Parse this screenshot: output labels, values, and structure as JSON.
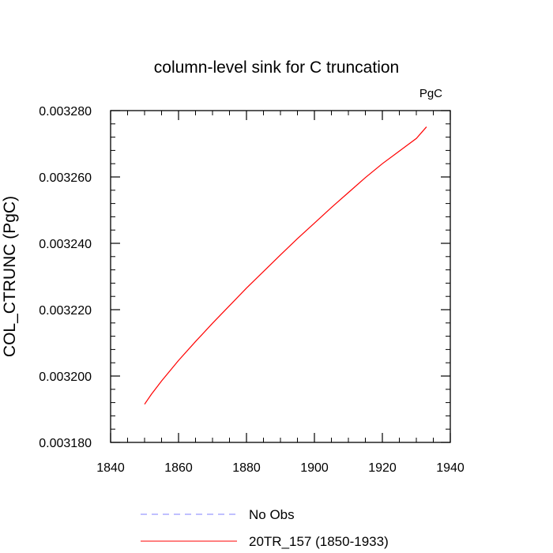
{
  "chart_data": {
    "type": "line",
    "title": "column-level sink for C truncation",
    "units_label": "PgC",
    "xlabel": "",
    "ylabel": "COL_CTRUNC  (PgC)",
    "xlim": [
      1840,
      1940
    ],
    "ylim": [
      0.00318,
      0.00328
    ],
    "x_ticks": [
      1840,
      1860,
      1880,
      1900,
      1920,
      1940
    ],
    "x_tick_labels": [
      "1840",
      "1860",
      "1880",
      "1900",
      "1920",
      "1940"
    ],
    "y_ticks": [
      0.00318,
      0.0032,
      0.00322,
      0.00324,
      0.00326,
      0.00328
    ],
    "y_tick_labels": [
      "0.003180",
      "0.003200",
      "0.003220",
      "0.003240",
      "0.003260",
      "0.003280"
    ],
    "grid": false,
    "legend_position": "bottom",
    "series": [
      {
        "name": "No Obs",
        "color": "#8080ff",
        "dash": true,
        "x": [],
        "y": []
      },
      {
        "name": "20TR_157 (1850-1933)",
        "color": "#ff0000",
        "dash": false,
        "x": [
          1850,
          1852,
          1855,
          1860,
          1865,
          1870,
          1875,
          1880,
          1885,
          1890,
          1895,
          1900,
          1905,
          1910,
          1915,
          1920,
          1925,
          1930,
          1933
        ],
        "y": [
          0.0031915,
          0.0031945,
          0.0031985,
          0.0032047,
          0.0032104,
          0.0032159,
          0.0032212,
          0.0032265,
          0.0032315,
          0.0032365,
          0.0032414,
          0.0032461,
          0.0032508,
          0.0032553,
          0.0032598,
          0.003264,
          0.0032678,
          0.0032716,
          0.0032751
        ]
      }
    ]
  }
}
